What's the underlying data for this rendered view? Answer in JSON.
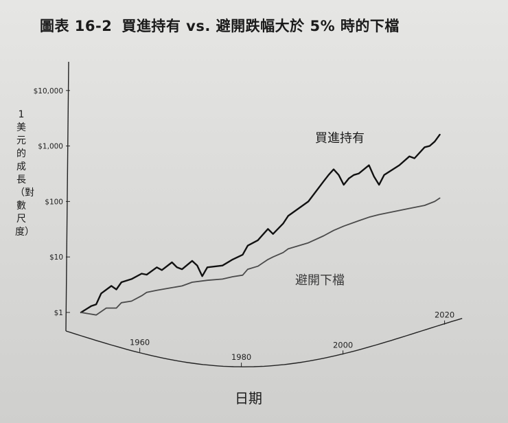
{
  "figure_number": "圖表 16-2",
  "chart_data": {
    "type": "line",
    "title": "買進持有 vs. 避開跌幅大於 5% 時的下檔",
    "xlabel": "日期",
    "ylabel": "1美元的成長（對數尺度）",
    "yscale": "log",
    "ylim": [
      0.6,
      50000
    ],
    "xlim": [
      1946,
      2024
    ],
    "yticks": [
      {
        "value": 1,
        "label": "$1"
      },
      {
        "value": 10,
        "label": "$10"
      },
      {
        "value": 100,
        "label": "$100"
      },
      {
        "value": 1000,
        "label": "$1,000"
      },
      {
        "value": 10000,
        "label": "$10,000"
      }
    ],
    "xticks": [
      1960,
      1980,
      2000,
      2020
    ],
    "grid": false,
    "series": [
      {
        "name": "買進持有",
        "color": "#111111",
        "x": [
          1950,
          1952,
          1953,
          1954,
          1956,
          1957,
          1958,
          1960,
          1962,
          1963,
          1965,
          1966,
          1968,
          1969,
          1970,
          1972,
          1973,
          1974,
          1975,
          1978,
          1980,
          1982,
          1983,
          1985,
          1987,
          1988,
          1990,
          1991,
          1995,
          1998,
          1999,
          2000,
          2001,
          2002,
          2003,
          2004,
          2005,
          2007,
          2008,
          2009,
          2010,
          2013,
          2015,
          2016,
          2018,
          2019,
          2020,
          2021
        ],
        "y": [
          1,
          1.3,
          1.4,
          2.2,
          3.0,
          2.6,
          3.5,
          4.0,
          5.0,
          4.8,
          6.5,
          5.8,
          8.0,
          6.5,
          6.0,
          8.5,
          7.0,
          4.5,
          6.5,
          7.0,
          9.0,
          11,
          16,
          20,
          32,
          26,
          40,
          55,
          100,
          230,
          300,
          380,
          300,
          200,
          260,
          300,
          320,
          450,
          280,
          200,
          300,
          450,
          650,
          600,
          950,
          1000,
          1200,
          1600
        ]
      },
      {
        "name": "避開下檔",
        "color": "#4a4a4a",
        "x": [
          1950,
          1953,
          1955,
          1957,
          1958,
          1960,
          1962,
          1963,
          1965,
          1968,
          1970,
          1972,
          1975,
          1978,
          1980,
          1982,
          1983,
          1985,
          1987,
          1988,
          1990,
          1991,
          1995,
          1998,
          2000,
          2002,
          2005,
          2007,
          2009,
          2012,
          2015,
          2018,
          2020,
          2021
        ],
        "y": [
          1,
          0.9,
          1.2,
          1.2,
          1.5,
          1.6,
          2.0,
          2.3,
          2.5,
          2.8,
          3.0,
          3.5,
          3.8,
          4.0,
          4.4,
          4.7,
          6.0,
          6.8,
          9.0,
          10,
          12,
          14,
          18,
          24,
          30,
          36,
          45,
          52,
          58,
          66,
          75,
          85,
          100,
          115
        ]
      }
    ]
  }
}
